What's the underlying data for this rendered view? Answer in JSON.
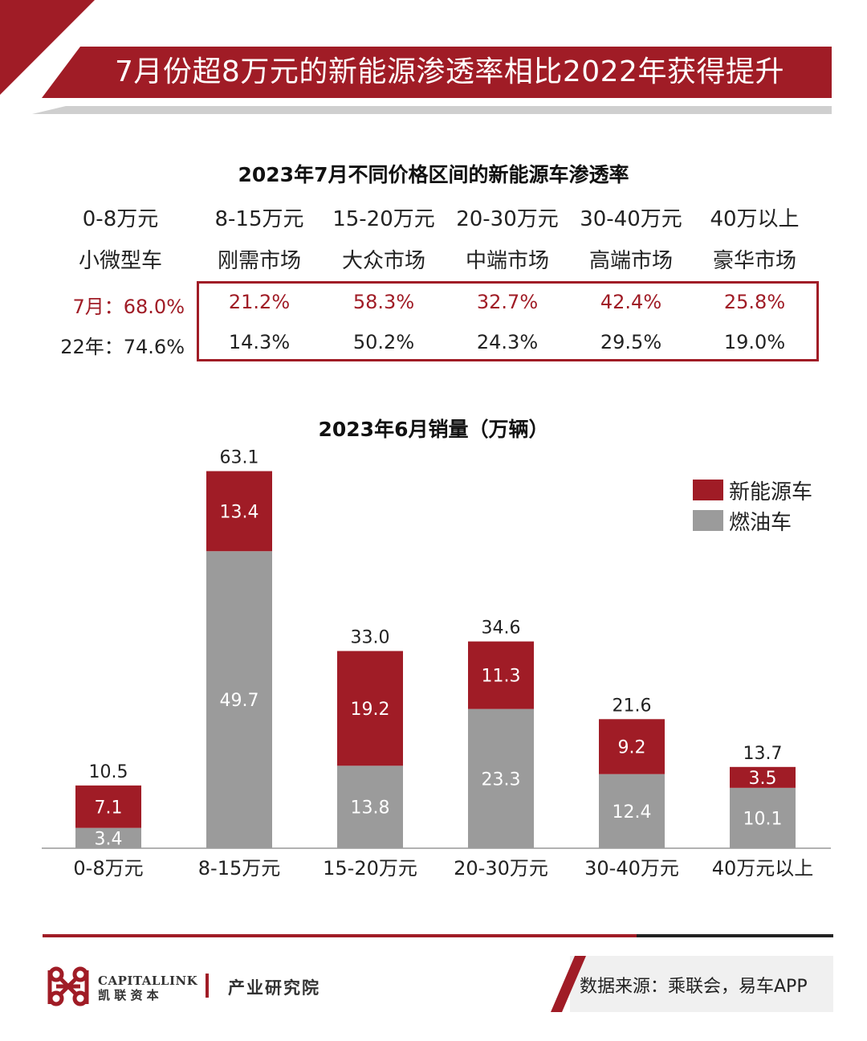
{
  "header": {
    "title": "7月份超8万元的新能源渗透率相比2022年获得提升"
  },
  "penetration": {
    "title": "2023年7月不同价格区间的新能源车渗透率",
    "price_ranges": [
      "0-8万元",
      "8-15万元",
      "15-20万元",
      "20-30万元",
      "30-40万元",
      "40万以上"
    ],
    "segments": [
      "小微型车",
      "刚需市场",
      "大众市场",
      "中端市场",
      "高端市场",
      "豪华市场"
    ],
    "rows": [
      {
        "label": "7月：",
        "values": [
          "68.0%",
          "21.2%",
          "58.3%",
          "32.7%",
          "42.4%",
          "25.8%"
        ],
        "color": "#a01c26"
      },
      {
        "label": "22年：",
        "values": [
          "74.6%",
          "14.3%",
          "50.2%",
          "24.3%",
          "29.5%",
          "19.0%"
        ],
        "color": "#222222"
      }
    ]
  },
  "chart_data": {
    "type": "bar",
    "stacked": true,
    "title": "2023年6月销量（万辆）",
    "categories": [
      "0-8万元",
      "8-15万元",
      "15-20万元",
      "20-30万元",
      "30-40万元",
      "40万元以上"
    ],
    "series": [
      {
        "name": "燃油车",
        "color": "#9b9b9b",
        "values": [
          3.4,
          49.7,
          13.8,
          23.3,
          12.4,
          10.1
        ]
      },
      {
        "name": "新能源车",
        "color": "#a01c26",
        "values": [
          7.1,
          13.4,
          19.2,
          11.3,
          9.2,
          3.5
        ]
      }
    ],
    "totals": [
      10.5,
      63.1,
      33.0,
      34.6,
      21.6,
      13.7
    ],
    "legend_position": "top-right",
    "grid": false
  },
  "footer": {
    "brand_en": "CAPITALLINK",
    "brand_cn": "凯 联 资 本",
    "institute": "产业研究院",
    "source": "数据来源：乘联会，易车APP"
  },
  "colors": {
    "brand_red": "#a01c26",
    "gray": "#9b9b9b"
  }
}
